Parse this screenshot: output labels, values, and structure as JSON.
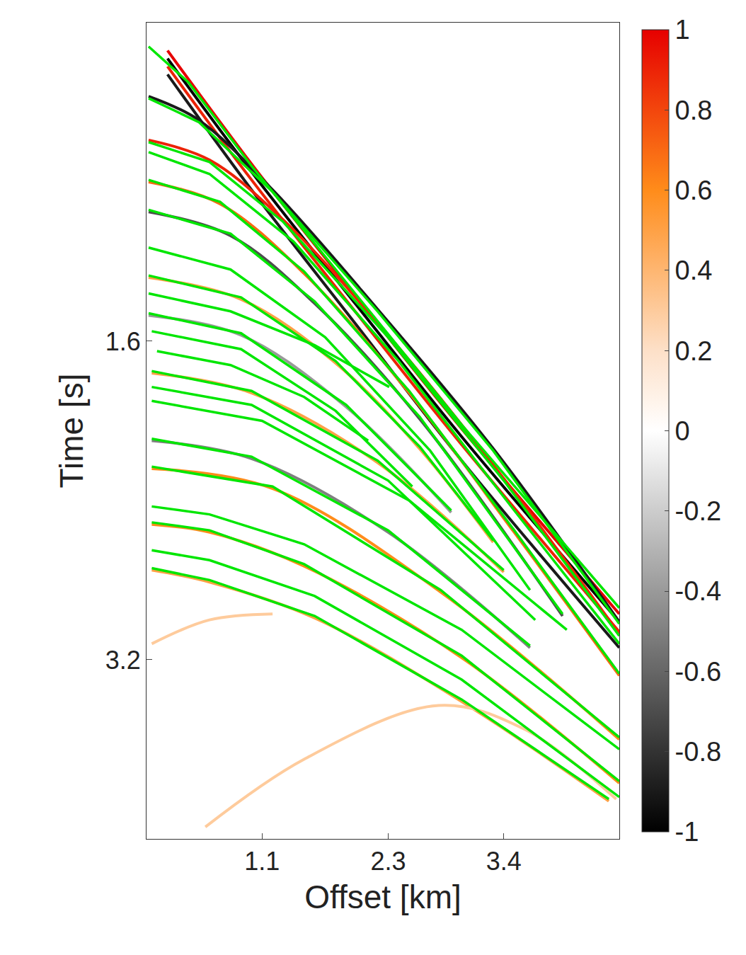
{
  "chart_data": {
    "type": "seismic_gather",
    "x_label": "Offset [km]",
    "y_label": "Time [s]",
    "xlim": [
      0,
      4.5
    ],
    "ylim": [
      4.1,
      0
    ],
    "xticks": [
      1.1,
      2.3,
      3.4
    ],
    "yticks": [
      1.6,
      3.2
    ],
    "grid": false,
    "colorbar_range": [
      -1,
      1
    ],
    "colorbar_ticks": [
      1,
      0.8,
      0.6,
      0.4,
      0.2,
      0,
      -0.2,
      -0.4,
      -0.6,
      -0.8,
      -1
    ],
    "events": [
      {
        "amplitude": 1,
        "x": [
          0.2,
          1.0,
          2.0,
          3.0,
          4.5
        ],
        "y": [
          0.14,
          0.71,
          1.38,
          2.04,
          2.97
        ]
      },
      {
        "amplitude": -1,
        "x": [
          0.2,
          1.0,
          2.0,
          3.0,
          4.5
        ],
        "y": [
          0.18,
          0.75,
          1.42,
          2.08,
          3.01
        ]
      },
      {
        "amplitude": 0.9,
        "x": [
          0.2,
          1.0,
          2.0,
          3.0,
          4.5
        ],
        "y": [
          0.22,
          0.79,
          1.46,
          2.12,
          3.06
        ]
      },
      {
        "amplitude": -0.9,
        "x": [
          0.2,
          1.0,
          2.0,
          3.0,
          4.5
        ],
        "y": [
          0.26,
          0.84,
          1.52,
          2.2,
          3.14
        ]
      },
      {
        "amplitude": -0.9,
        "x": [
          0.02,
          0.5,
          1.2,
          2.2,
          3.3,
          4.5
        ],
        "y": [
          0.37,
          0.49,
          0.84,
          1.44,
          2.14,
          3.01
        ]
      },
      {
        "amplitude": 0.9,
        "x": [
          0.02,
          0.6,
          1.3,
          2.3,
          3.4,
          4.5
        ],
        "y": [
          0.59,
          0.69,
          0.99,
          1.57,
          2.29,
          3.07
        ]
      },
      {
        "amplitude": 0.7,
        "x": [
          0.02,
          0.7,
          1.5,
          2.5,
          3.5,
          4.5
        ],
        "y": [
          0.8,
          0.91,
          1.26,
          1.86,
          2.56,
          3.28
        ]
      },
      {
        "amplitude": -0.7,
        "x": [
          0.02,
          0.8,
          1.6,
          2.6,
          3.96
        ],
        "y": [
          0.95,
          1.07,
          1.41,
          1.99,
          2.98
        ]
      },
      {
        "amplitude": 0.5,
        "x": [
          0.02,
          0.9,
          1.8,
          2.6,
          3.3
        ],
        "y": [
          1.28,
          1.39,
          1.71,
          2.14,
          2.61
        ]
      },
      {
        "amplitude": -0.4,
        "x": [
          0.02,
          0.9,
          1.9,
          2.9
        ],
        "y": [
          1.47,
          1.57,
          1.93,
          2.46
        ]
      },
      {
        "amplitude": 0.5,
        "x": [
          0.05,
          1.0,
          2.2,
          3.4
        ],
        "y": [
          1.76,
          1.86,
          2.21,
          2.76
        ]
      },
      {
        "amplitude": -0.5,
        "x": [
          0.05,
          1.0,
          2.3,
          3.65
        ],
        "y": [
          2.1,
          2.19,
          2.56,
          3.14
        ]
      },
      {
        "amplitude": 0.6,
        "x": [
          0.05,
          1.2,
          2.8,
          4.5
        ],
        "y": [
          2.24,
          2.34,
          2.86,
          3.6
        ]
      },
      {
        "amplitude": 0.6,
        "x": [
          0.05,
          0.6,
          1.5,
          3.0,
          4.5
        ],
        "y": [
          2.52,
          2.56,
          2.73,
          3.19,
          3.82
        ]
      },
      {
        "amplitude": 0.5,
        "x": [
          0.05,
          0.6,
          1.6,
          3.0,
          4.4
        ],
        "y": [
          2.75,
          2.81,
          2.99,
          3.41,
          3.91
        ]
      },
      {
        "amplitude": 0.3,
        "x": [
          0.56,
          1.5,
          2.78,
          3.6,
          4.47
        ],
        "y": [
          4.04,
          3.7,
          3.43,
          3.55,
          3.9
        ]
      },
      {
        "amplitude": 0.3,
        "x": [
          0.05,
          0.6,
          1.2
        ],
        "y": [
          3.12,
          3.0,
          2.97
        ]
      }
    ],
    "picks": {
      "color": "#00e600",
      "curves": [
        {
          "x": [
            0.02,
            0.4,
            1.0,
            2.0,
            3.0,
            4.5
          ],
          "y": [
            0.12,
            0.3,
            0.72,
            1.37,
            2.02,
            2.94
          ]
        },
        {
          "x": [
            0.02,
            0.5,
            1.2,
            2.2,
            3.3,
            4.5
          ],
          "y": [
            0.38,
            0.5,
            0.85,
            1.45,
            2.15,
            3.02
          ]
        },
        {
          "x": [
            0.02,
            0.6,
            1.3,
            2.3,
            3.4,
            4.5
          ],
          "y": [
            0.6,
            0.7,
            1.0,
            1.58,
            2.3,
            3.08
          ]
        },
        {
          "x": [
            0.02,
            0.6,
            1.4,
            2.4,
            3.5,
            4.5
          ],
          "y": [
            0.65,
            0.76,
            1.1,
            1.7,
            2.45,
            3.12
          ]
        },
        {
          "x": [
            0.02,
            0.7,
            1.5,
            2.5,
            3.5,
            4.5
          ],
          "y": [
            0.79,
            0.9,
            1.25,
            1.85,
            2.55,
            3.27
          ]
        },
        {
          "x": [
            0.02,
            0.8,
            1.6,
            2.6,
            3.96
          ],
          "y": [
            0.94,
            1.06,
            1.4,
            1.98,
            2.97
          ]
        },
        {
          "x": [
            0.02,
            0.8,
            1.7,
            2.7,
            3.65
          ],
          "y": [
            1.13,
            1.24,
            1.58,
            2.15,
            2.85
          ]
        },
        {
          "x": [
            0.02,
            0.9,
            1.8,
            2.6,
            3.3
          ],
          "y": [
            1.27,
            1.38,
            1.7,
            2.13,
            2.6
          ]
        },
        {
          "x": [
            0.02,
            0.8,
            1.6,
            2.31
          ],
          "y": [
            1.36,
            1.45,
            1.62,
            1.83
          ]
        },
        {
          "x": [
            0.02,
            0.9,
            1.9,
            2.9
          ],
          "y": [
            1.46,
            1.56,
            1.92,
            2.45
          ]
        },
        {
          "x": [
            0.05,
            0.9,
            1.8,
            2.53
          ],
          "y": [
            1.55,
            1.64,
            1.95,
            2.33
          ]
        },
        {
          "x": [
            0.1,
            0.8,
            1.5,
            2.11
          ],
          "y": [
            1.65,
            1.72,
            1.88,
            2.1
          ]
        },
        {
          "x": [
            0.05,
            1.0,
            2.2,
            3.4
          ],
          "y": [
            1.75,
            1.85,
            2.2,
            2.75
          ]
        },
        {
          "x": [
            0.05,
            1.0,
            2.3,
            3.7
          ],
          "y": [
            1.83,
            1.92,
            2.3,
            3.0
          ]
        },
        {
          "x": [
            0.05,
            1.1,
            2.5,
            4.0
          ],
          "y": [
            1.9,
            2.0,
            2.4,
            3.05
          ]
        },
        {
          "x": [
            0.05,
            1.0,
            2.3,
            3.65
          ],
          "y": [
            2.09,
            2.18,
            2.55,
            3.13
          ]
        },
        {
          "x": [
            0.05,
            1.2,
            2.8,
            4.5
          ],
          "y": [
            2.23,
            2.33,
            2.85,
            3.59
          ]
        },
        {
          "x": [
            0.05,
            0.6,
            1.5,
            3.0,
            4.5
          ],
          "y": [
            2.43,
            2.47,
            2.62,
            3.05,
            3.65
          ]
        },
        {
          "x": [
            0.05,
            0.6,
            1.5,
            3.0,
            4.5
          ],
          "y": [
            2.51,
            2.55,
            2.72,
            3.18,
            3.81
          ]
        },
        {
          "x": [
            0.05,
            0.6,
            1.6,
            3.0,
            4.5
          ],
          "y": [
            2.65,
            2.7,
            2.88,
            3.3,
            3.89
          ]
        },
        {
          "x": [
            0.05,
            0.6,
            1.6,
            3.0,
            4.4
          ],
          "y": [
            2.74,
            2.8,
            2.98,
            3.4,
            3.9
          ]
        }
      ]
    }
  }
}
